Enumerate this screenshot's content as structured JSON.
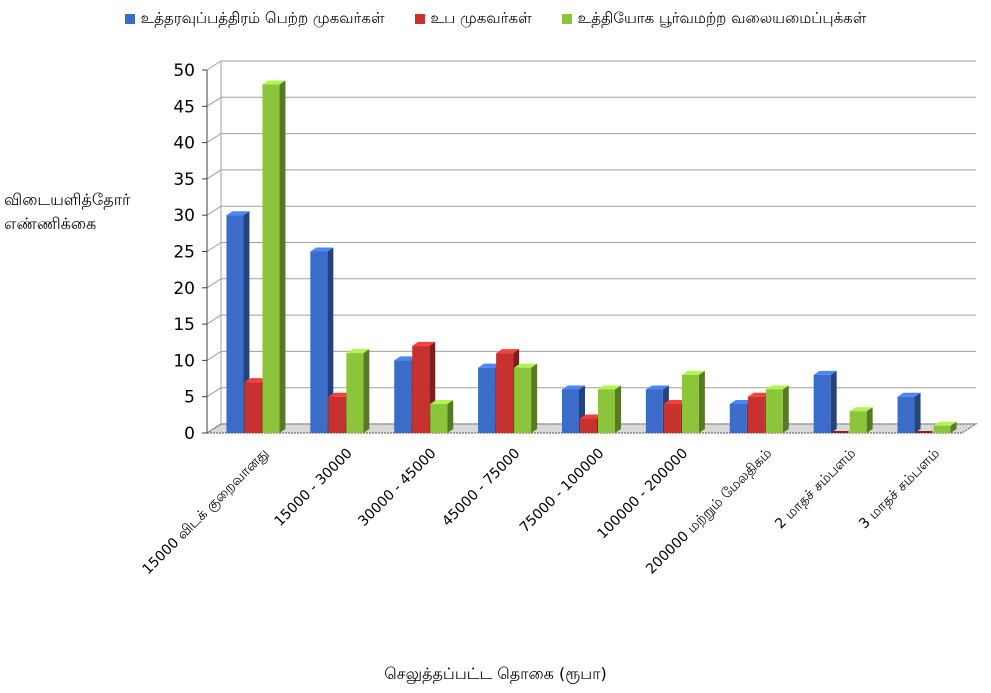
{
  "chart_data": {
    "type": "bar",
    "title": "",
    "xlabel": "செலுத்தப்பட்ட தொகை (ரூபா)",
    "ylabel_lines": [
      "விடையளித்தோர்",
      "எண்ணிக்கை"
    ],
    "ylim": [
      0,
      50
    ],
    "yticks": [
      0,
      5,
      10,
      15,
      20,
      25,
      30,
      35,
      40,
      45,
      50
    ],
    "grid": true,
    "legend_position": "top",
    "categories": [
      "15000 விடக் குறைவானது",
      "15000 - 30000",
      "30000 - 45000",
      "45000 - 75000",
      "75000 - 100000",
      "100000 - 200000",
      "200000 மற்றும் மேலதிகம்",
      "2 மாதச் சம்பளம்",
      "3 மாதச் சம்பளம்"
    ],
    "series": [
      {
        "name": "உத்தரவுப்பத்திரம் பெற்ற முகவர்கள்",
        "color": "#3a6cc8",
        "values": [
          30,
          25,
          10,
          9,
          6,
          6,
          4,
          8,
          5
        ]
      },
      {
        "name": "உப முகவர்கள்",
        "color": "#c8322e",
        "values": [
          7,
          5,
          12,
          11,
          2,
          4,
          5,
          0,
          0
        ]
      },
      {
        "name": "உத்தியோக பூர்வமற்ற வலையமைப்புக்கள்",
        "color": "#8cc43c",
        "values": [
          48,
          11,
          4,
          9,
          6,
          8,
          6,
          3,
          1
        ]
      }
    ]
  }
}
